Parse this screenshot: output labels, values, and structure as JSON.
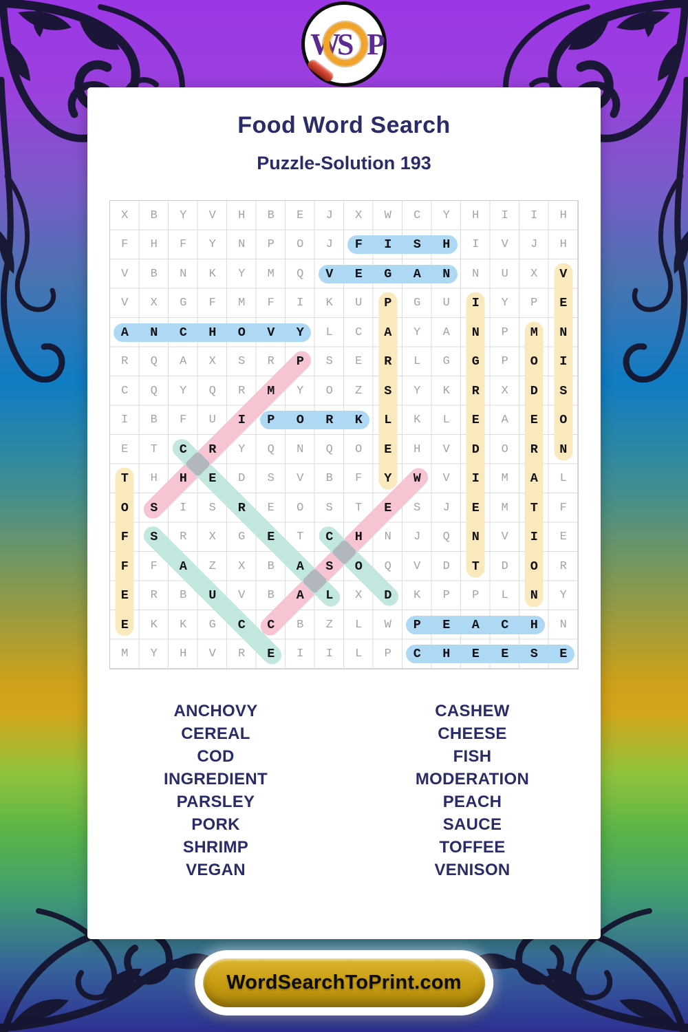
{
  "header": {
    "title": "Food Word Search",
    "subtitle": "Puzzle-Solution 193"
  },
  "logo": {
    "letters": [
      "W",
      "S",
      "P"
    ],
    "letter_color": "#5b2b90",
    "ring_color": "#f0a42c",
    "handle_color": "#c23a27"
  },
  "grid": {
    "rows": [
      "XBYVHBEJXWCYHIIH",
      "FHFYNPOJFISHIVJH",
      "VBNKYMQVEGANNUXV",
      "VXGFMFIKUPGUIYPE",
      "ANCHOVYLCAYANPMN",
      "RQAXSRPSERLGGPOI",
      "CQYQRMYOZSYKRXDS",
      "IBFUIPORKLKLEAEO",
      "ETCRYQNQOEHVDORN",
      "THHEDSVBFYWVIMAL",
      "OSISREOSTESJEMTF",
      "FSRXGETCHNJQNVIE",
      "FFAZXBASOQVDTDOR",
      "ERBUVBALXDKPPLNY",
      "EKKGCCBZLWPEACHN",
      "MYHVREIILPCHEESE"
    ],
    "solutions": [
      {
        "word": "ANCHOVY",
        "color": "blue",
        "start": [
          5,
          1
        ],
        "end": [
          5,
          7
        ]
      },
      {
        "word": "FISH",
        "color": "blue",
        "start": [
          2,
          9
        ],
        "end": [
          2,
          12
        ]
      },
      {
        "word": "VEGAN",
        "color": "blue",
        "start": [
          3,
          8
        ],
        "end": [
          3,
          12
        ]
      },
      {
        "word": "PORK",
        "color": "blue",
        "start": [
          8,
          6
        ],
        "end": [
          8,
          9
        ]
      },
      {
        "word": "PEACH",
        "color": "blue",
        "start": [
          15,
          11
        ],
        "end": [
          15,
          15
        ]
      },
      {
        "word": "CHEESE",
        "color": "blue",
        "start": [
          16,
          11
        ],
        "end": [
          16,
          16
        ]
      },
      {
        "word": "TOFFEE",
        "color": "yellow",
        "start": [
          10,
          1
        ],
        "end": [
          15,
          1
        ]
      },
      {
        "word": "PARSLEY",
        "color": "yellow",
        "start": [
          4,
          10
        ],
        "end": [
          10,
          10
        ]
      },
      {
        "word": "INGREDIENT",
        "color": "yellow",
        "start": [
          4,
          13
        ],
        "end": [
          13,
          13
        ]
      },
      {
        "word": "MODERATION",
        "color": "yellow",
        "start": [
          5,
          15
        ],
        "end": [
          14,
          15
        ]
      },
      {
        "word": "VENISON",
        "color": "yellow",
        "start": [
          3,
          16
        ],
        "end": [
          9,
          16
        ]
      },
      {
        "word": "SHRIMP",
        "color": "pink",
        "start": [
          11,
          2
        ],
        "end": [
          6,
          7
        ]
      },
      {
        "word": "CASHEW",
        "color": "pink",
        "start": [
          15,
          6
        ],
        "end": [
          10,
          11
        ]
      },
      {
        "word": "CEREAL",
        "color": "teal",
        "start": [
          9,
          3
        ],
        "end": [
          14,
          8
        ]
      },
      {
        "word": "SAUCE",
        "color": "teal",
        "start": [
          12,
          2
        ],
        "end": [
          16,
          6
        ]
      },
      {
        "word": "COD",
        "color": "teal",
        "start": [
          12,
          8
        ],
        "end": [
          14,
          10
        ]
      }
    ]
  },
  "word_list": {
    "left": [
      "ANCHOVY",
      "CEREAL",
      "COD",
      "INGREDIENT",
      "PARSLEY",
      "PORK",
      "SHRIMP",
      "VEGAN"
    ],
    "right": [
      "CASHEW",
      "CHEESE",
      "FISH",
      "MODERATION",
      "PEACH",
      "SAUCE",
      "TOFFEE",
      "VENISON"
    ]
  },
  "footer": {
    "button_label": "WordSearchToPrint.com"
  },
  "colors": {
    "blue": "#aed9f5",
    "yellow": "#f9e9bd",
    "pink": "#f7c5d2",
    "teal": "#c2e7df",
    "cross_gray": "#b2b6bd",
    "title_navy": "#292c68",
    "button_gold": "#c89d12",
    "background_top_purple": "#9c36e6",
    "background_bottom_indigo": "#2e3092"
  }
}
